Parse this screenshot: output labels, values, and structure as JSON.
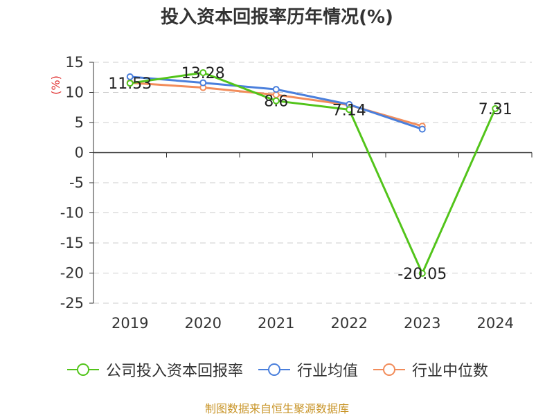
{
  "title": "投入资本回报率历年情况(%)",
  "source": "制图数据来自恒生聚源数据库",
  "chart_data": {
    "type": "line",
    "unit_label": "(%)",
    "categories": [
      "2019",
      "2020",
      "2021",
      "2022",
      "2023",
      "2024"
    ],
    "ylim": [
      -25,
      15
    ],
    "yticks": [
      15,
      10,
      5,
      0,
      -5,
      -10,
      -15,
      -20,
      -25
    ],
    "grid": true,
    "legend_position": "bottom",
    "series": [
      {
        "name": "公司投入资本回报率",
        "color": "#52c41a",
        "values": [
          11.53,
          13.28,
          8.6,
          7.14,
          -20.05,
          7.31
        ],
        "labels": [
          "11.53",
          "13.28",
          "8.6",
          "7.14",
          "-20.05",
          "7.31"
        ],
        "show_labels": true
      },
      {
        "name": "行业均值",
        "color": "#4a7fdc",
        "values": [
          12.6,
          11.6,
          10.5,
          8.0,
          3.9,
          null
        ],
        "show_labels": false
      },
      {
        "name": "行业中位数",
        "color": "#f28c5a",
        "values": [
          11.6,
          10.8,
          9.6,
          7.9,
          4.4,
          null
        ],
        "show_labels": false
      }
    ]
  }
}
